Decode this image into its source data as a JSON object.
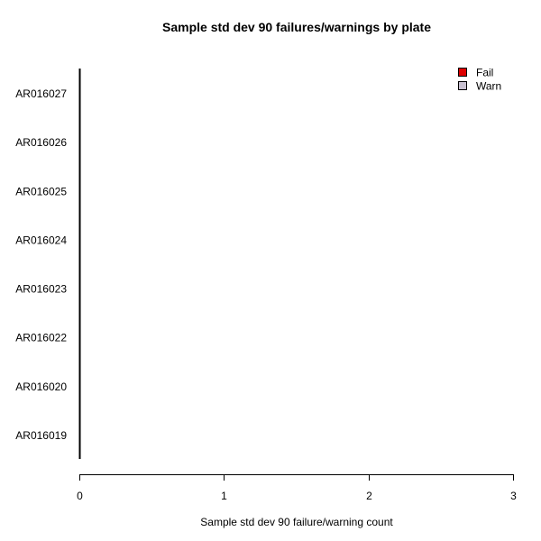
{
  "chart_data": {
    "type": "bar",
    "orientation": "horizontal",
    "title": "Sample std dev 90 failures/warnings by plate",
    "xlabel": "Sample std dev 90 failure/warning count",
    "ylabel": "",
    "categories": [
      "AR016019",
      "AR016020",
      "AR016022",
      "AR016023",
      "AR016024",
      "AR016025",
      "AR016026",
      "AR016027"
    ],
    "series": [
      {
        "name": "Fail",
        "color": "#dd0000",
        "values": [
          0,
          0,
          0,
          0,
          0,
          0,
          0,
          0
        ]
      },
      {
        "name": "Warn",
        "color": "#c8c0d0",
        "values": [
          0,
          0,
          0,
          0,
          0,
          0,
          0,
          0
        ]
      }
    ],
    "xlim": [
      0,
      3
    ],
    "xticks": [
      "0",
      "1",
      "2",
      "3"
    ],
    "grid": false,
    "legend_position": "top-right"
  }
}
